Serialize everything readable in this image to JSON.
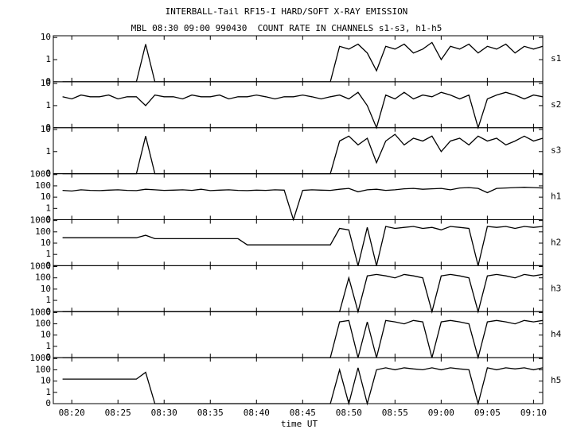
{
  "chart_data": {
    "type": "line",
    "title": "INTERBALL-Tail RF15-I HARD/SOFT X-RAY EMISSION",
    "subtitle": "MBL 08:30 09:00 990430  COUNT RATE IN CHANNELS s1-s3, h1-h5",
    "xlabel": "time UT",
    "yscale": "symlog",
    "linthresh": 1,
    "color": "#000000",
    "xlim": [
      "08:18",
      "09:11"
    ],
    "xticks": [
      "08:20",
      "08:25",
      "08:30",
      "08:35",
      "08:40",
      "08:45",
      "08:50",
      "08:55",
      "09:00",
      "09:05",
      "09:10"
    ],
    "x": [
      "08:19",
      "08:20",
      "08:21",
      "08:22",
      "08:23",
      "08:24",
      "08:25",
      "08:26",
      "08:27",
      "08:28",
      "08:29",
      "08:30",
      "08:31",
      "08:32",
      "08:33",
      "08:34",
      "08:35",
      "08:36",
      "08:37",
      "08:38",
      "08:39",
      "08:40",
      "08:41",
      "08:42",
      "08:43",
      "08:44",
      "08:45",
      "08:46",
      "08:47",
      "08:48",
      "08:49",
      "08:50",
      "08:51",
      "08:52",
      "08:53",
      "08:54",
      "08:55",
      "08:56",
      "08:57",
      "08:58",
      "08:59",
      "09:00",
      "09:01",
      "09:02",
      "09:03",
      "09:04",
      "09:05",
      "09:06",
      "09:07",
      "09:08",
      "09:09",
      "09:10",
      "09:11"
    ],
    "panels": [
      {
        "name": "s1",
        "ylim": [
          0,
          12
        ],
        "yticks": [
          0,
          1,
          10
        ],
        "values": [
          0,
          0,
          0,
          0,
          0,
          0,
          0,
          0,
          0,
          5,
          0,
          0,
          0,
          0,
          0,
          0,
          0,
          0,
          0,
          0,
          0,
          0,
          0,
          0,
          0,
          0,
          0,
          0,
          0,
          0,
          4,
          3,
          5,
          2,
          0.5,
          4,
          3,
          5,
          2,
          3,
          6,
          1,
          4,
          3,
          5,
          2,
          4,
          3,
          5,
          2,
          4,
          3,
          4
        ]
      },
      {
        "name": "s2",
        "ylim": [
          0,
          12
        ],
        "yticks": [
          0,
          1,
          10
        ],
        "values": [
          2.5,
          2,
          3,
          2.5,
          2.5,
          3,
          2,
          2.5,
          2.5,
          1,
          3,
          2.5,
          2.5,
          2,
          3,
          2.5,
          2.5,
          3,
          2,
          2.5,
          2.5,
          3,
          2.5,
          2,
          2.5,
          2.5,
          3,
          2.5,
          2,
          2.5,
          3,
          2,
          4,
          1,
          0,
          3,
          2,
          4,
          2,
          3,
          2.5,
          4,
          3,
          2,
          3,
          0,
          2,
          3,
          4,
          3,
          2,
          3,
          2.5
        ]
      },
      {
        "name": "s3",
        "ylim": [
          0,
          12
        ],
        "yticks": [
          0,
          1,
          10
        ],
        "values": [
          0,
          0,
          0,
          0,
          0,
          0,
          0,
          0,
          0,
          5,
          0,
          0,
          0,
          0,
          0,
          0,
          0,
          0,
          0,
          0,
          0,
          0,
          0,
          0,
          0,
          0,
          0,
          0,
          0,
          0,
          3,
          5,
          2,
          4,
          0.5,
          3,
          6,
          2,
          4,
          3,
          5,
          1,
          3,
          4,
          2,
          5,
          3,
          4,
          2,
          3,
          5,
          3,
          4
        ]
      },
      {
        "name": "h1",
        "ylim": [
          0,
          1200
        ],
        "yticks": [
          0,
          1,
          10,
          100,
          1000
        ],
        "values": [
          40,
          35,
          45,
          40,
          38,
          42,
          45,
          40,
          38,
          50,
          45,
          40,
          42,
          45,
          40,
          50,
          38,
          42,
          45,
          40,
          38,
          42,
          40,
          45,
          42,
          0,
          40,
          45,
          42,
          40,
          50,
          60,
          30,
          45,
          50,
          40,
          45,
          55,
          60,
          50,
          55,
          60,
          45,
          65,
          70,
          60,
          25,
          60,
          65,
          70,
          75,
          70,
          65
        ]
      },
      {
        "name": "h2",
        "ylim": [
          0,
          1200
        ],
        "yticks": [
          0,
          1,
          10,
          100,
          1000
        ],
        "values": [
          30,
          30,
          30,
          30,
          30,
          30,
          30,
          30,
          30,
          50,
          25,
          25,
          25,
          25,
          25,
          25,
          25,
          25,
          25,
          25,
          7,
          7,
          7,
          7,
          7,
          7,
          7,
          7,
          7,
          7,
          200,
          150,
          0,
          250,
          0,
          300,
          200,
          250,
          300,
          200,
          250,
          150,
          300,
          250,
          200,
          0,
          300,
          250,
          300,
          200,
          300,
          250,
          300
        ]
      },
      {
        "name": "h3",
        "ylim": [
          0,
          1200
        ],
        "yticks": [
          0,
          1,
          10,
          100,
          1000
        ],
        "values": [
          0,
          0,
          0,
          0,
          0,
          0,
          0,
          0,
          0,
          0,
          0,
          0,
          0,
          0,
          0,
          0,
          0,
          0,
          0,
          0,
          0,
          0,
          0,
          0,
          0,
          0,
          0,
          0,
          0,
          0,
          0,
          100,
          0,
          150,
          200,
          150,
          100,
          200,
          150,
          100,
          0,
          150,
          200,
          150,
          100,
          0,
          150,
          200,
          150,
          100,
          200,
          150,
          200
        ]
      },
      {
        "name": "h4",
        "ylim": [
          0,
          1200
        ],
        "yticks": [
          0,
          1,
          10,
          100,
          1000
        ],
        "values": [
          0,
          0,
          0,
          0,
          0,
          0,
          0,
          0,
          0,
          0,
          0,
          0,
          0,
          0,
          0,
          0,
          0,
          0,
          0,
          0,
          0,
          0,
          0,
          0,
          0,
          0,
          0,
          0,
          0,
          0,
          150,
          200,
          0,
          150,
          0,
          200,
          150,
          100,
          200,
          150,
          0,
          150,
          200,
          150,
          100,
          0,
          150,
          200,
          150,
          100,
          200,
          150,
          200
        ]
      },
      {
        "name": "h5",
        "ylim": [
          0,
          1200
        ],
        "yticks": [
          0,
          1,
          10,
          100,
          1000
        ],
        "values": [
          15,
          15,
          15,
          15,
          15,
          15,
          15,
          15,
          15,
          60,
          0,
          0,
          0,
          0,
          0,
          0,
          0,
          0,
          0,
          0,
          0,
          0,
          0,
          0,
          0,
          0,
          0,
          0,
          0,
          0,
          100,
          0,
          150,
          0,
          100,
          150,
          100,
          150,
          120,
          100,
          150,
          100,
          150,
          120,
          100,
          0,
          150,
          100,
          150,
          120,
          150,
          100,
          150
        ]
      }
    ]
  }
}
